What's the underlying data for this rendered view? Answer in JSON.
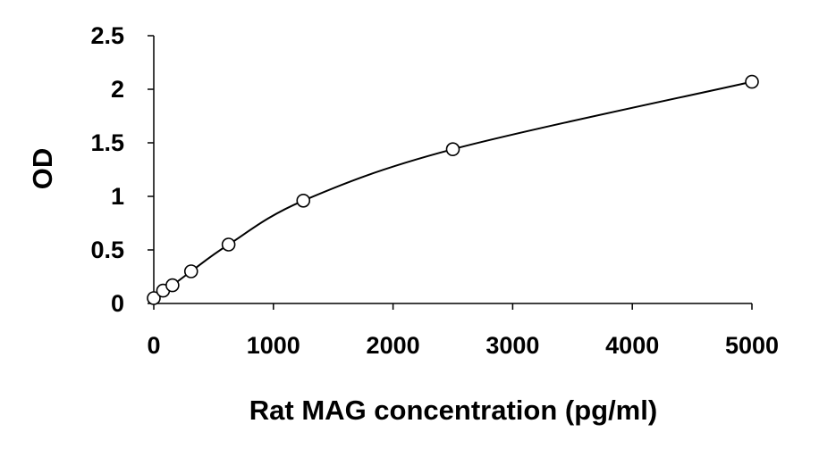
{
  "chart_data": {
    "type": "scatter",
    "title": "",
    "xlabel": "Rat MAG concentration (pg/ml)",
    "ylabel": "OD",
    "xlim": [
      0,
      5000
    ],
    "ylim": [
      0,
      2.5
    ],
    "x_ticks": [
      0,
      1000,
      2000,
      3000,
      4000,
      5000
    ],
    "x_tick_labels": [
      "0",
      "1000",
      "2000",
      "3000",
      "4000",
      "5000"
    ],
    "y_ticks": [
      0,
      0.5,
      1,
      1.5,
      2,
      2.5
    ],
    "y_tick_labels": [
      "0",
      "0.5",
      "1",
      "1.5",
      "2",
      "2.5"
    ],
    "grid": false,
    "legend": "none",
    "series": [
      {
        "x": [
          0,
          78,
          156,
          312,
          625,
          1250,
          2500,
          5000
        ],
        "y": [
          0.05,
          0.12,
          0.17,
          0.3,
          0.55,
          0.96,
          1.44,
          2.07
        ],
        "marker": "open-circle",
        "line": "smooth"
      }
    ]
  }
}
